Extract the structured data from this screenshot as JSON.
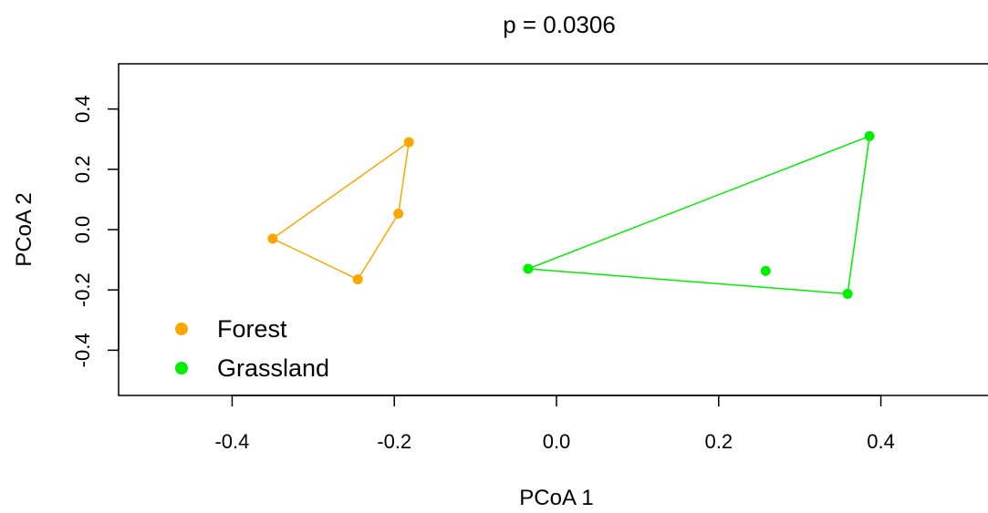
{
  "chart_data": {
    "type": "scatter",
    "title": "p = 0.0306",
    "xlabel": "PCoA 1",
    "ylabel": "PCoA 2",
    "xlim": [
      -0.54,
      0.54
    ],
    "ylim": [
      -0.55,
      0.55
    ],
    "xticks": [
      -0.4,
      -0.2,
      0.0,
      0.2,
      0.4
    ],
    "yticks": [
      -0.4,
      -0.2,
      0.0,
      0.2,
      0.4
    ],
    "xtick_labels": [
      "-0.4",
      "-0.2",
      "0.0",
      "0.2",
      "0.4"
    ],
    "ytick_labels": [
      "-0.4",
      "-0.2",
      "0.0",
      "0.2",
      "0.4"
    ],
    "grid": false,
    "legend_position": "bottom-left",
    "series": [
      {
        "name": "Forest",
        "color": "#FFA500",
        "points": [
          [
            -0.182,
            0.29
          ],
          [
            -0.195,
            0.053
          ],
          [
            -0.35,
            -0.03
          ],
          [
            -0.245,
            -0.165
          ]
        ],
        "hull": [
          [
            -0.182,
            0.29
          ],
          [
            -0.35,
            -0.03
          ],
          [
            -0.245,
            -0.165
          ],
          [
            -0.195,
            0.053
          ]
        ]
      },
      {
        "name": "Grassland",
        "color": "#00EE00",
        "points": [
          [
            0.386,
            0.31
          ],
          [
            -0.035,
            -0.13
          ],
          [
            0.359,
            -0.213
          ],
          [
            0.258,
            -0.137
          ]
        ],
        "hull": [
          [
            0.386,
            0.31
          ],
          [
            -0.035,
            -0.13
          ],
          [
            0.359,
            -0.213
          ]
        ]
      }
    ]
  }
}
